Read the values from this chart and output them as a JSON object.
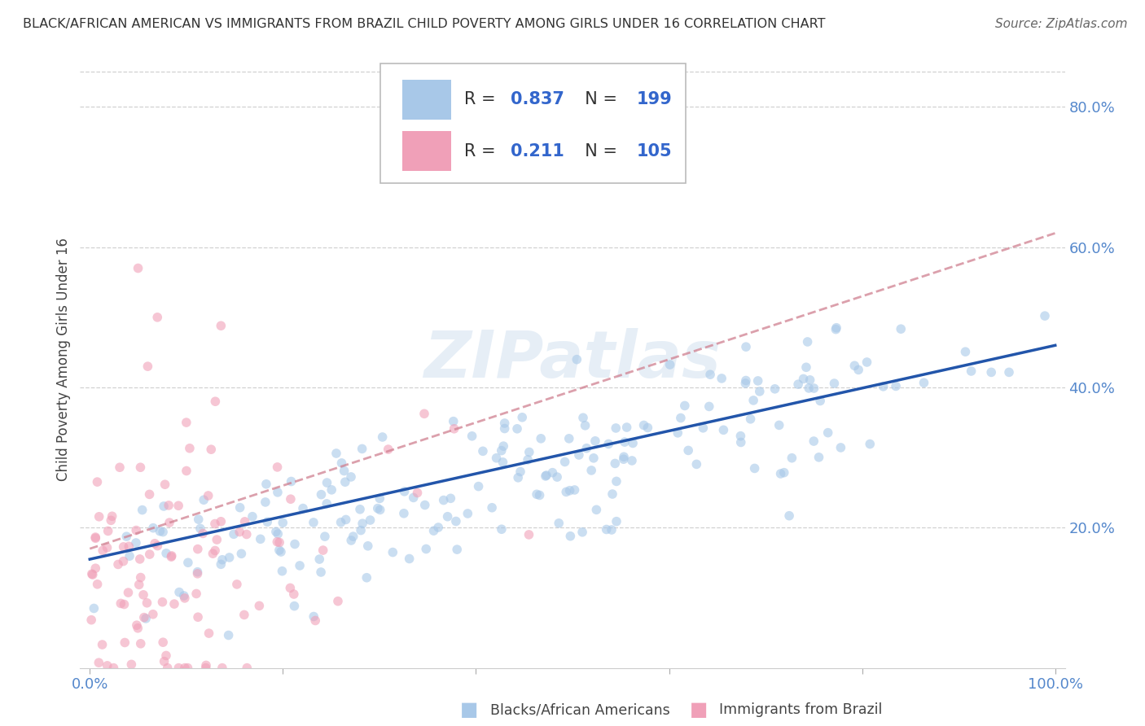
{
  "title": "BLACK/AFRICAN AMERICAN VS IMMIGRANTS FROM BRAZIL CHILD POVERTY AMONG GIRLS UNDER 16 CORRELATION CHART",
  "source": "Source: ZipAtlas.com",
  "ylabel": "Child Poverty Among Girls Under 16",
  "blue_R": 0.837,
  "blue_N": 199,
  "pink_R": 0.211,
  "pink_N": 105,
  "blue_color": "#a8c8e8",
  "pink_color": "#f0a0b8",
  "blue_line_color": "#2255aa",
  "pink_line_color": "#d08090",
  "watermark": "ZIPatlas",
  "watermark_color": "#b8d0e8",
  "x_ticks": [
    0.0,
    0.2,
    0.4,
    0.6,
    0.8,
    1.0
  ],
  "y_ticks": [
    0.2,
    0.4,
    0.6,
    0.8
  ],
  "tick_color": "#5588cc",
  "background_color": "#ffffff",
  "grid_color": "#cccccc",
  "title_color": "#333333",
  "source_color": "#666666",
  "legend_label_color": "#333333",
  "legend_value_color": "#3366cc",
  "blue_scatter_alpha": 0.6,
  "pink_scatter_alpha": 0.6,
  "scatter_size": 70
}
